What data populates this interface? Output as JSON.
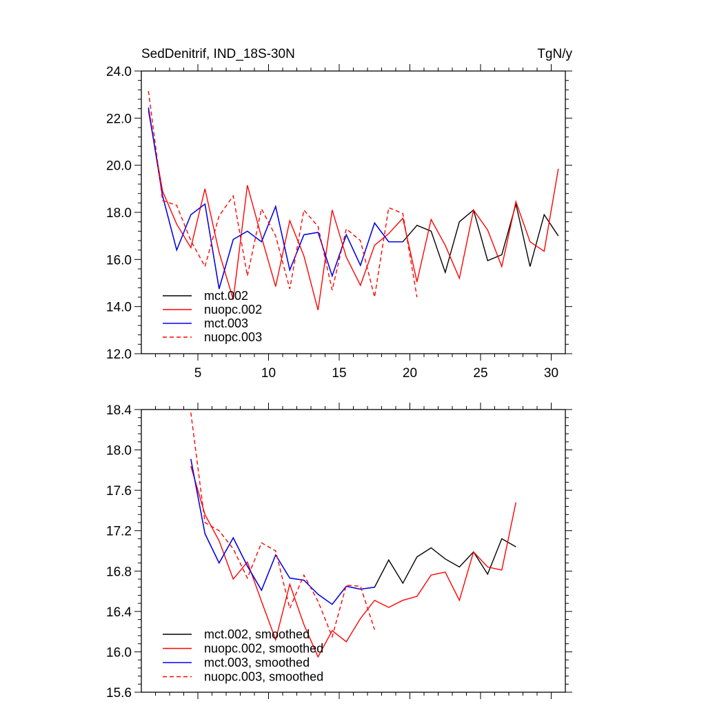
{
  "chart_data": [
    {
      "type": "line",
      "title": "SedDenitrif, IND_18S-30N",
      "units": "TgN/y",
      "xlabel": "",
      "ylabel": "",
      "xlim": [
        1,
        31
      ],
      "ylim": [
        12.0,
        24.0
      ],
      "x_ticks": [
        5,
        10,
        15,
        20,
        25,
        30
      ],
      "y_ticks": [
        "12.0",
        "14.0",
        "16.0",
        "18.0",
        "20.0",
        "22.0",
        "24.0"
      ],
      "legend_position": "bottom-left",
      "series": [
        {
          "name": "mct.002",
          "color": "#000000",
          "dash": "solid",
          "x": [
            1.5,
            2.5,
            3.5,
            4.5,
            5.5,
            6.5,
            7.5,
            8.5,
            9.5,
            10.5,
            11.5,
            12.5,
            13.5,
            14.5,
            15.5,
            16.5,
            17.5,
            18.5,
            19.5,
            20.5,
            21.5,
            22.5,
            23.5,
            24.5,
            25.5,
            26.5,
            27.5,
            28.5,
            29.5,
            30.5
          ],
          "values": [
            22.4,
            18.7,
            16.4,
            17.9,
            18.35,
            14.75,
            16.85,
            17.2,
            16.75,
            18.25,
            15.55,
            17.05,
            17.15,
            15.3,
            17.05,
            15.75,
            17.55,
            16.75,
            16.75,
            17.45,
            17.2,
            15.45,
            17.6,
            18.1,
            15.95,
            16.2,
            18.35,
            15.7,
            17.9,
            17.0
          ]
        },
        {
          "name": "nuopc.002",
          "color": "#ff0000",
          "dash": "solid",
          "x": [
            1.5,
            2.5,
            3.5,
            4.5,
            5.5,
            6.5,
            7.5,
            8.5,
            9.5,
            10.5,
            11.5,
            12.5,
            13.5,
            14.5,
            15.5,
            16.5,
            17.5,
            18.5,
            19.5,
            20.5,
            21.5,
            22.5,
            23.5,
            24.5,
            25.5,
            26.5,
            27.5,
            28.5,
            29.5,
            30.5
          ],
          "values": [
            22.3,
            18.9,
            17.5,
            16.5,
            19.0,
            16.3,
            14.3,
            19.15,
            16.95,
            14.85,
            17.65,
            16.15,
            13.85,
            18.1,
            16.1,
            14.9,
            16.6,
            17.1,
            17.75,
            15.05,
            17.7,
            16.6,
            15.2,
            18.1,
            17.25,
            15.7,
            18.45,
            16.75,
            16.35,
            19.85
          ]
        },
        {
          "name": "mct.003",
          "color": "#0000ff",
          "dash": "solid",
          "x": [
            1.5,
            2.5,
            3.5,
            4.5,
            5.5,
            6.5,
            7.5,
            8.5,
            9.5,
            10.5,
            11.5,
            12.5,
            13.5,
            14.5,
            15.5,
            16.5,
            17.5,
            18.5,
            19.5
          ],
          "values": [
            22.45,
            18.7,
            16.4,
            17.9,
            18.35,
            14.75,
            16.85,
            17.2,
            16.75,
            18.25,
            15.55,
            17.05,
            17.15,
            15.3,
            17.05,
            15.75,
            17.55,
            16.75,
            16.75
          ]
        },
        {
          "name": "nuopc.003",
          "color": "#ff0000",
          "dash": "dashed",
          "x": [
            1.5,
            2.5,
            3.5,
            4.5,
            5.5,
            6.5,
            7.5,
            8.5,
            9.5,
            10.5,
            11.5,
            12.5,
            13.5,
            14.5,
            15.5,
            16.5,
            17.5,
            18.5,
            19.5,
            20.5
          ],
          "values": [
            23.15,
            18.5,
            18.3,
            16.8,
            15.7,
            17.85,
            18.7,
            15.3,
            18.15,
            17.0,
            14.75,
            18.1,
            17.4,
            14.7,
            17.3,
            16.8,
            14.4,
            18.2,
            17.95,
            14.4
          ]
        }
      ]
    },
    {
      "type": "line",
      "title": "",
      "xlabel": "",
      "ylabel": "",
      "xlim": [
        1,
        31
      ],
      "ylim": [
        15.6,
        18.4
      ],
      "x_ticks": [
        5,
        10,
        15,
        20,
        25,
        30
      ],
      "y_ticks": [
        "15.6",
        "16.0",
        "16.4",
        "16.8",
        "17.2",
        "17.6",
        "18.0",
        "18.4"
      ],
      "legend_position": "bottom-left",
      "series": [
        {
          "name": "mct.002, smoothed",
          "color": "#000000",
          "dash": "solid",
          "x": [
            4.5,
            5.5,
            6.5,
            7.5,
            8.5,
            9.5,
            10.5,
            11.5,
            12.5,
            13.5,
            14.5,
            15.5,
            16.5,
            17.5,
            18.5,
            19.5,
            20.5,
            21.5,
            22.5,
            23.5,
            24.5,
            25.5,
            26.5,
            27.5
          ],
          "values": [
            17.91,
            17.17,
            16.88,
            17.13,
            16.85,
            16.61,
            16.96,
            16.73,
            16.71,
            16.57,
            16.47,
            16.65,
            16.62,
            16.64,
            16.91,
            16.68,
            16.94,
            17.03,
            16.92,
            16.84,
            16.99,
            16.77,
            17.12,
            17.04
          ]
        },
        {
          "name": "nuopc.002, smoothed",
          "color": "#ff0000",
          "dash": "solid",
          "x": [
            4.5,
            5.5,
            6.5,
            7.5,
            8.5,
            9.5,
            10.5,
            11.5,
            12.5,
            13.5,
            14.5,
            15.5,
            16.5,
            17.5,
            18.5,
            19.5,
            20.5,
            21.5,
            22.5,
            23.5,
            24.5,
            25.5,
            26.5,
            27.5
          ],
          "values": [
            17.84,
            17.36,
            17.1,
            16.72,
            16.89,
            16.5,
            16.12,
            16.67,
            16.27,
            15.95,
            16.21,
            16.1,
            16.33,
            16.51,
            16.44,
            16.51,
            16.55,
            16.76,
            16.79,
            16.51,
            16.99,
            16.84,
            16.81,
            17.48
          ]
        },
        {
          "name": "mct.003, smoothed",
          "color": "#0000ff",
          "dash": "solid",
          "x": [
            4.5,
            5.5,
            6.5,
            7.5,
            8.5,
            9.5,
            10.5,
            11.5,
            12.5,
            13.5,
            14.5,
            15.5,
            16.5,
            17.5
          ],
          "values": [
            17.91,
            17.17,
            16.88,
            17.13,
            16.85,
            16.61,
            16.96,
            16.73,
            16.71,
            16.57,
            16.47,
            16.65,
            16.62,
            16.64
          ]
        },
        {
          "name": "nuopc.003, smoothed",
          "color": "#ff0000",
          "dash": "dashed",
          "x": [
            4.5,
            5.5,
            6.5,
            7.5,
            8.5,
            9.5,
            10.5,
            11.5,
            12.5,
            13.5,
            14.5,
            15.5,
            16.5,
            17.5
          ],
          "values": [
            18.37,
            17.28,
            17.2,
            17.02,
            16.73,
            17.08,
            17.0,
            16.43,
            16.76,
            16.5,
            16.15,
            16.66,
            16.65,
            16.22
          ]
        }
      ]
    }
  ]
}
